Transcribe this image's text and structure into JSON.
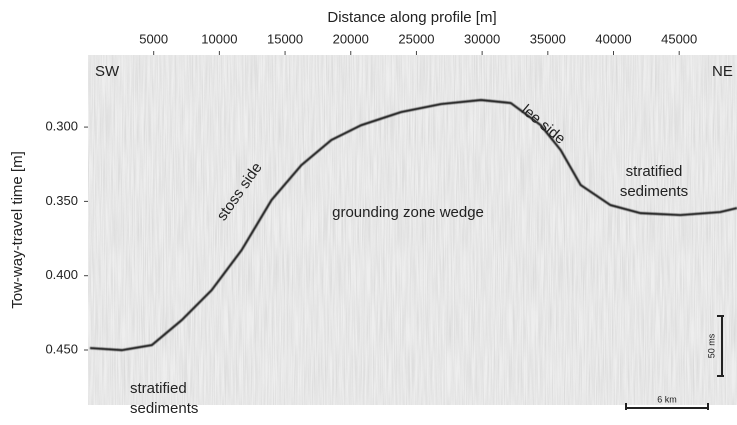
{
  "chart_data": {
    "type": "line",
    "x_label": "Distance along profile [m]",
    "y_label": "Tow-way-travel time [m]",
    "xlim": [
      0,
      49400
    ],
    "ylim": [
      0.487,
      0.2515
    ],
    "xticks": [
      5000,
      10000,
      15000,
      20000,
      25000,
      30000,
      35000,
      40000,
      45000
    ],
    "yticks": [
      {
        "value": 0.3,
        "label": "0.300"
      },
      {
        "value": 0.35,
        "label": "0.350"
      },
      {
        "value": 0.4,
        "label": "0.400"
      },
      {
        "value": 0.45,
        "label": "0.450"
      }
    ],
    "series": [
      {
        "color": "#1a1a1a",
        "x": [
          150,
          2580,
          4860,
          7130,
          9410,
          11690,
          13970,
          16240,
          18520,
          20800,
          23830,
          26870,
          29910,
          32180,
          34460,
          35980,
          37500,
          39770,
          42050,
          45090,
          48120,
          49400
        ],
        "values": [
          0.4487,
          0.4501,
          0.4467,
          0.4299,
          0.4097,
          0.3828,
          0.3491,
          0.3256,
          0.3087,
          0.2987,
          0.2899,
          0.2845,
          0.2818,
          0.2838,
          0.2987,
          0.3155,
          0.339,
          0.3525,
          0.3579,
          0.3592,
          0.3572,
          0.3545
        ]
      }
    ],
    "annotations": [
      {
        "lines": [
          "SW"
        ]
      },
      {
        "lines": [
          "NE"
        ]
      },
      {
        "lines": [
          "stoss side"
        ]
      },
      {
        "lines": [
          "lee side"
        ]
      },
      {
        "lines": [
          "grounding zone wedge"
        ]
      },
      {
        "lines": [
          "stratified",
          "sediments"
        ]
      },
      {
        "lines": [
          "stratified",
          "sediments"
        ]
      }
    ],
    "scale_bars": [
      "50 ms",
      "6 km"
    ]
  }
}
